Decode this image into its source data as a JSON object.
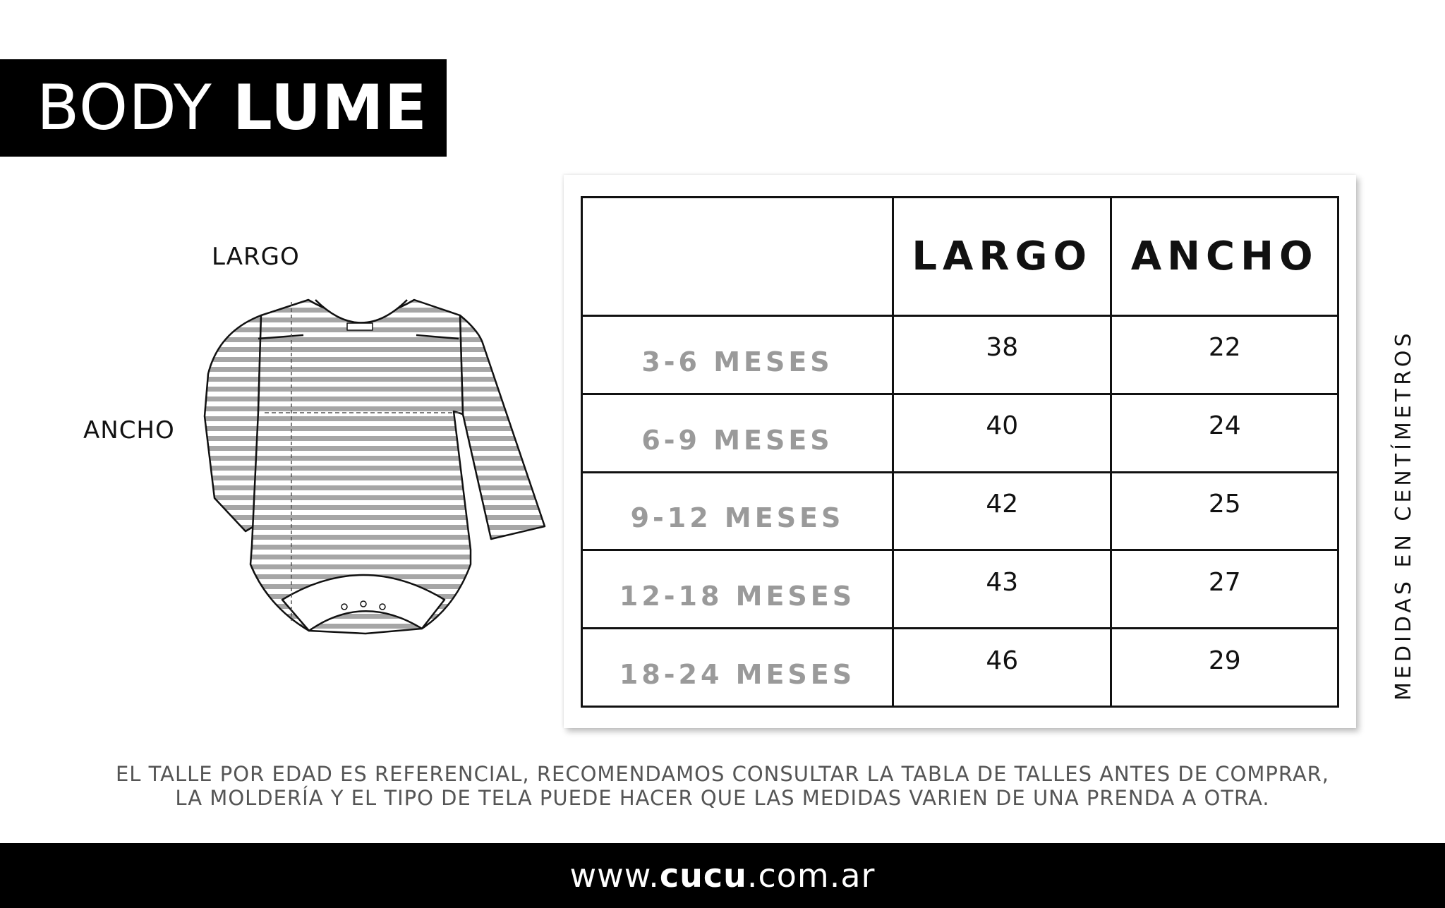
{
  "title": {
    "light": "BODY",
    "bold": "LUME"
  },
  "diagram": {
    "largo_label": "LARGO",
    "ancho_label": "ANCHO"
  },
  "table": {
    "headers": [
      "",
      "LARGO",
      "ANCHO"
    ],
    "rows": [
      {
        "size": "3-6 MESES",
        "largo": "38",
        "ancho": "22"
      },
      {
        "size": "6-9 MESES",
        "largo": "40",
        "ancho": "24"
      },
      {
        "size": "9-12 MESES",
        "largo": "42",
        "ancho": "25"
      },
      {
        "size": "12-18 MESES",
        "largo": "43",
        "ancho": "27"
      },
      {
        "size": "18-24 MESES",
        "largo": "46",
        "ancho": "29"
      }
    ]
  },
  "units_note": "MEDIDAS EN CENTÍMETROS",
  "disclaimer": {
    "line1": "EL TALLE POR EDAD ES REFERENCIAL, RECOMENDAMOS CONSULTAR LA TABLA DE TALLES ANTES DE COMPRAR,",
    "line2": "LA MOLDERÍA Y EL TIPO DE TELA PUEDE HACER QUE LAS MEDIDAS VARIEN DE UNA PRENDA A OTRA."
  },
  "footer": {
    "prefix": "www.",
    "brand": "cucu",
    "suffix": ".com.ar"
  },
  "colors": {
    "stripe": "#a6a6a6",
    "size_text": "#9a9a9a",
    "band": "#000000"
  }
}
